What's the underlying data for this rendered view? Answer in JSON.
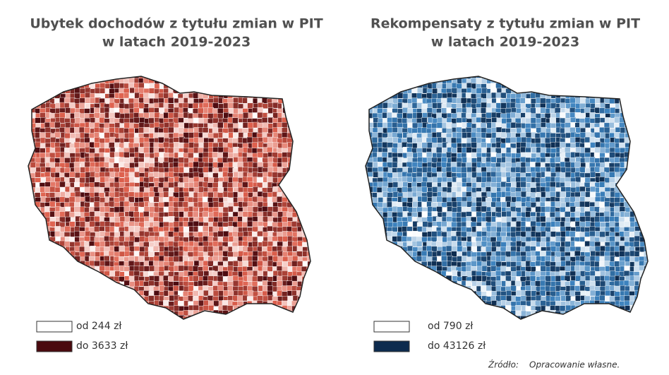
{
  "maps": [
    {
      "title": [
        "Ubytek dochodów z tytułu zmian w PIT",
        "w latach 2019-2023"
      ],
      "legend": [
        {
          "label": "od 244 zł",
          "color": "#ffffff"
        },
        {
          "label": "do 3633 zł",
          "color": "#4a0a0f"
        }
      ]
    },
    {
      "title": [
        "Rekompensaty z tytułu zmian w PIT",
        "w latach 2019-2023"
      ],
      "legend": [
        {
          "label": "od 790 zł",
          "color": "#ffffff"
        },
        {
          "label": "do 43126 zł",
          "color": "#0d2b4e"
        }
      ]
    }
  ],
  "source": {
    "label": "Źródło:",
    "text": "Opracowanie własne."
  }
}
